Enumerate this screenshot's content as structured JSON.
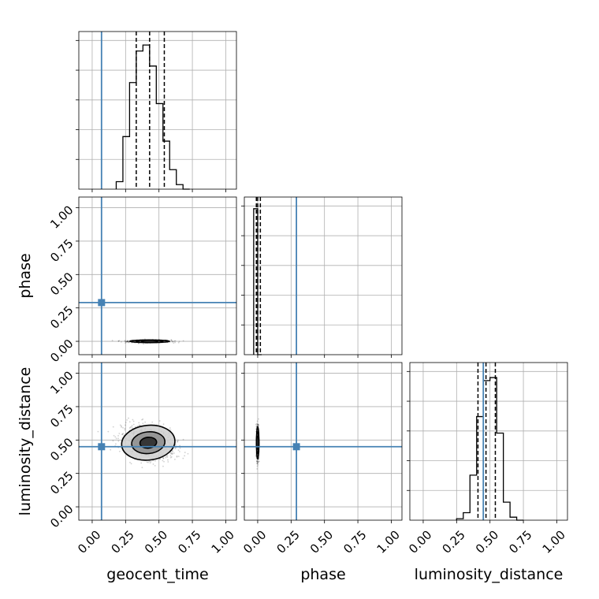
{
  "chart_data": {
    "type": "corner",
    "parameters": [
      "geocent_time",
      "phase",
      "luminosity_distance"
    ],
    "axis_labels": {
      "geocent_time": "geocent_time",
      "phase": "phase",
      "luminosity_distance": "luminosity_distance"
    },
    "range": [
      -0.1,
      1.08
    ],
    "ticks": [
      0.0,
      0.25,
      0.5,
      0.75,
      1.0
    ],
    "tick_labels": [
      "0.00",
      "0.25",
      "0.50",
      "0.75",
      "1.00"
    ],
    "grid": true,
    "truths": {
      "geocent_time": 0.07,
      "phase": 0.29,
      "luminosity_distance": 0.45
    },
    "colors": {
      "truth": "#4682b4",
      "hist": "#000000",
      "grid": "#b0b0b0"
    },
    "histograms": {
      "geocent_time": {
        "edges": [
          0.18,
          0.23,
          0.28,
          0.33,
          0.38,
          0.43,
          0.48,
          0.53,
          0.58,
          0.63,
          0.68,
          0.73
        ],
        "counts": [
          0.05,
          0.35,
          0.71,
          0.92,
          0.96,
          0.82,
          0.57,
          0.32,
          0.13,
          0.03,
          0.0
        ],
        "ymax": 1.05,
        "quantiles": [
          0.33,
          0.43,
          0.54
        ]
      },
      "phase": {
        "edges": [
          -0.03,
          0.0,
          0.03
        ],
        "counts": [
          1.0,
          0.0
        ],
        "ymax": 1.08,
        "quantiles": [
          -0.01,
          0.0,
          0.02
        ]
      },
      "luminosity_distance": {
        "edges": [
          0.25,
          0.3,
          0.35,
          0.4,
          0.45,
          0.5,
          0.55,
          0.6,
          0.65,
          0.7,
          0.75
        ],
        "counts": [
          0.01,
          0.05,
          0.3,
          0.69,
          0.93,
          0.95,
          0.58,
          0.12,
          0.02,
          0.0
        ],
        "ymax": 1.05,
        "quantiles": [
          0.41,
          0.47,
          0.54
        ]
      }
    },
    "pairs": [
      {
        "x": "geocent_time",
        "y": "phase",
        "center": [
          0.43,
          0.0
        ],
        "spread": [
          0.08,
          0.005
        ],
        "contour_scales": [
          0.6,
          1.0,
          1.5
        ]
      },
      {
        "x": "geocent_time",
        "y": "luminosity_distance",
        "center": [
          0.42,
          0.48
        ],
        "spread": [
          0.1,
          0.065
        ],
        "rho": -0.3,
        "contour_scales": [
          0.5,
          1.0,
          1.6
        ]
      },
      {
        "x": "phase",
        "y": "luminosity_distance",
        "center": [
          0.0,
          0.48
        ],
        "spread": [
          0.004,
          0.065
        ],
        "contour_scales": [
          0.6,
          1.0,
          1.5
        ]
      }
    ]
  }
}
